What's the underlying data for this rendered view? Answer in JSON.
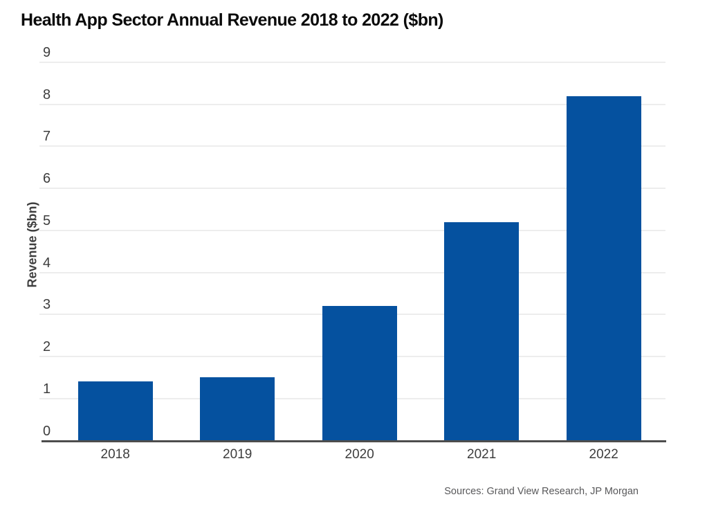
{
  "header": {
    "title": "Health App Sector Annual Revenue 2018 to 2022 ($bn)"
  },
  "footer": {
    "source": "Sources: Grand View Research, JP Morgan"
  },
  "chart_data": {
    "type": "bar",
    "title": "Health App Sector Annual Revenue 2018 to 2022 ($bn)",
    "categories": [
      "2018",
      "2019",
      "2020",
      "2021",
      "2022"
    ],
    "values": [
      1.4,
      1.5,
      3.2,
      5.2,
      8.2
    ],
    "xlabel": "",
    "ylabel": "Revenue ($bn)",
    "ylim": [
      0,
      9
    ],
    "yticks": [
      0,
      1,
      2,
      3,
      4,
      5,
      6,
      7,
      8,
      9
    ],
    "grid": true,
    "legend": "none",
    "bar_color": "#05519f",
    "source": "Sources: Grand View Research, JP Morgan"
  },
  "colors": {
    "bar": "#05519f",
    "gridline": "#ededed",
    "axis_line": "#4d4d4d",
    "tick_text": "#3d3d3d",
    "title_text": "#0b0b0b",
    "source_text": "#58585a",
    "background": "#ffffff"
  }
}
